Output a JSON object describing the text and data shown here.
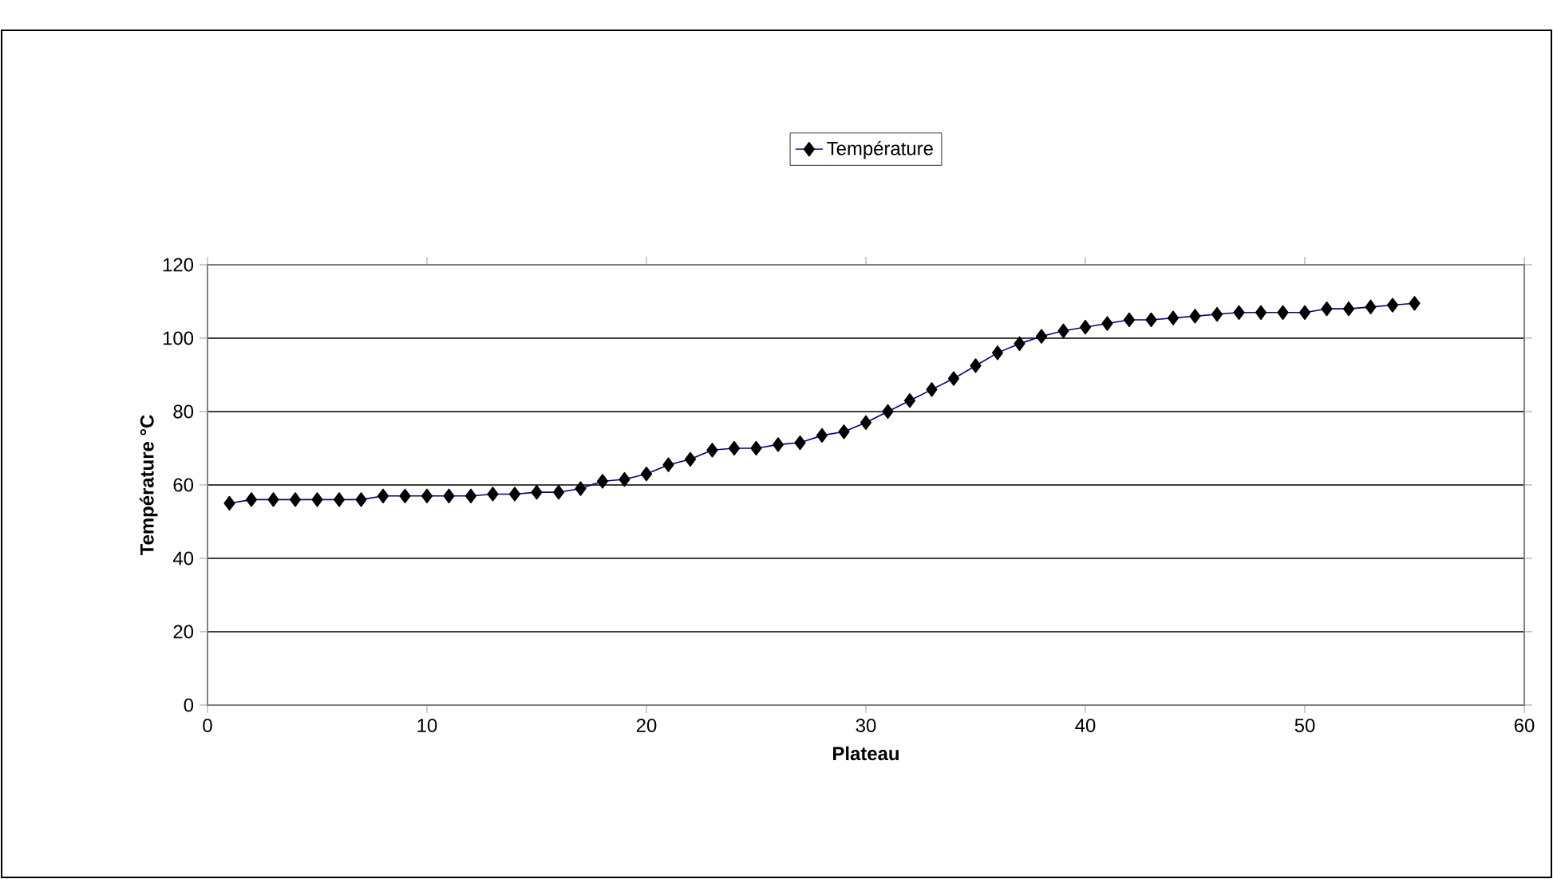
{
  "chart_data": {
    "type": "line",
    "xlabel": "Plateau",
    "ylabel": "Température °C",
    "x": [
      1,
      2,
      3,
      4,
      5,
      6,
      7,
      8,
      9,
      10,
      11,
      12,
      13,
      14,
      15,
      16,
      17,
      18,
      19,
      20,
      21,
      22,
      23,
      24,
      25,
      26,
      27,
      28,
      29,
      30,
      31,
      32,
      33,
      34,
      35,
      36,
      37,
      38,
      39,
      40,
      41,
      42,
      43,
      44,
      45,
      46,
      47,
      48,
      49,
      50,
      51,
      52,
      53,
      54,
      55
    ],
    "series": [
      {
        "name": "Température",
        "color": "#000080",
        "values": [
          55,
          56,
          56,
          56,
          56,
          56,
          56,
          57,
          57,
          57,
          57,
          57,
          57.5,
          57.5,
          58,
          58,
          59,
          61,
          61.5,
          63,
          65.5,
          67,
          69.5,
          70,
          70,
          71,
          71.5,
          73.5,
          74.5,
          77,
          80,
          83,
          86,
          89,
          92.5,
          96,
          98.5,
          100.5,
          102,
          103,
          104,
          105,
          105,
          105.5,
          106,
          106.5,
          107,
          107,
          107,
          107,
          108,
          108,
          108.5,
          109,
          109.5
        ]
      }
    ],
    "xlim": [
      0,
      60
    ],
    "xticks": [
      0,
      10,
      20,
      30,
      40,
      50,
      60
    ],
    "ylim": [
      0,
      120
    ],
    "yticks": [
      0,
      20,
      40,
      60,
      80,
      100,
      120
    ],
    "grid": "y",
    "legend": "top",
    "marker": "diamond",
    "line_style": "solid"
  }
}
